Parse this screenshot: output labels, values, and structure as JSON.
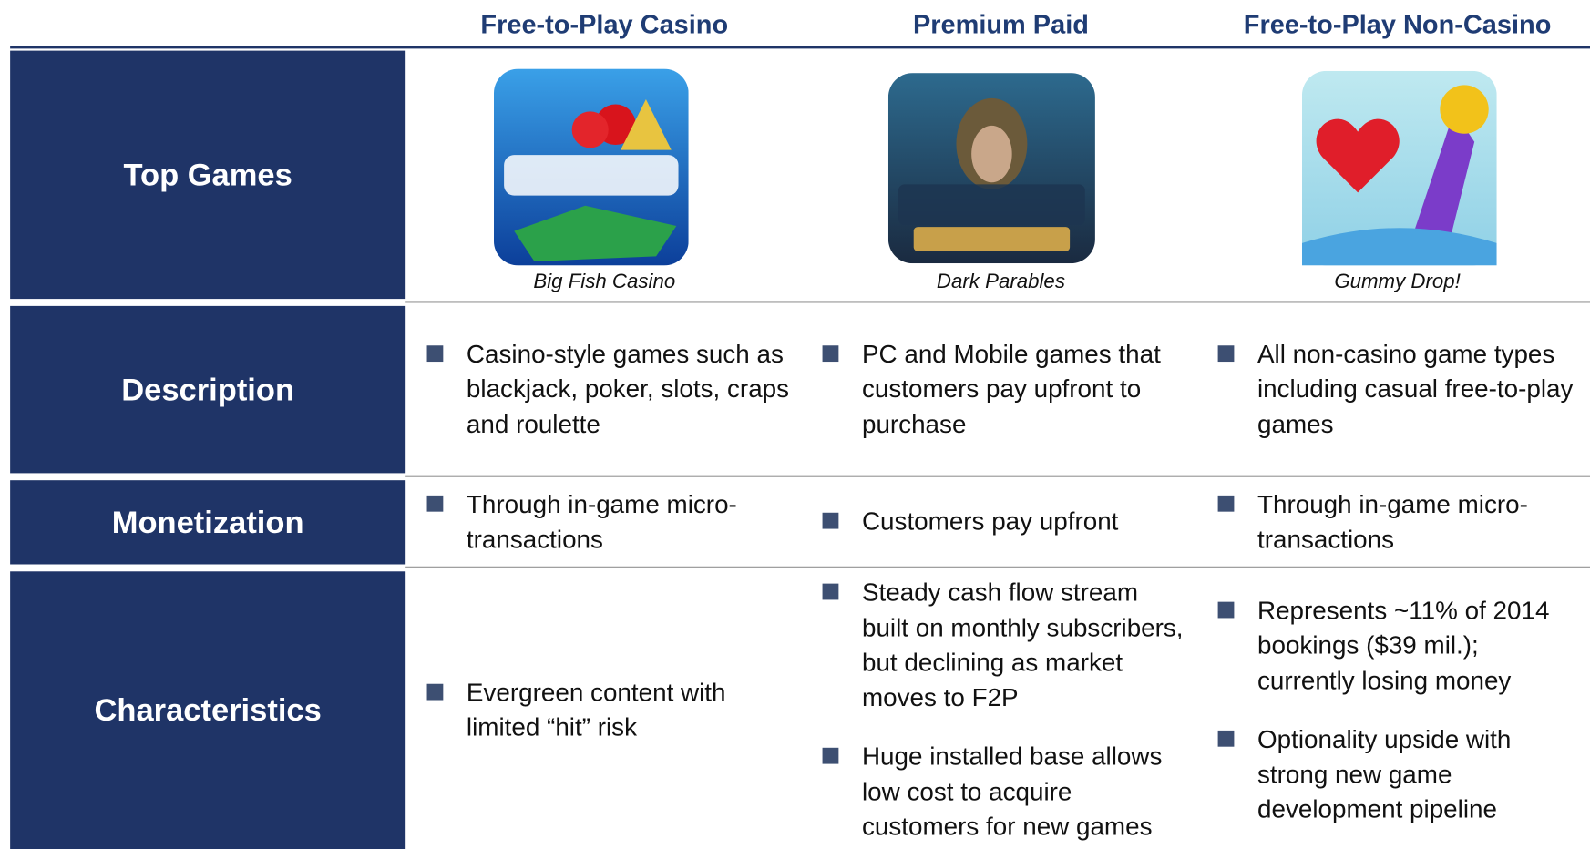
{
  "columns": [
    "Free-to-Play Casino",
    "Premium Paid",
    "Free-to-Play Non-Casino"
  ],
  "rows": [
    {
      "label": "Top Games",
      "captions": [
        "Big Fish Casino",
        "Dark Parables",
        "Gummy Drop!"
      ]
    },
    {
      "label": "Description",
      "cells": [
        [
          "Casino-style games such as blackjack, poker, slots, craps and roulette"
        ],
        [
          "PC and Mobile games that customers pay upfront to purchase"
        ],
        [
          "All non-casino game types including casual free-to-play games"
        ]
      ]
    },
    {
      "label": "Monetization",
      "cells": [
        [
          "Through in-game micro-transactions"
        ],
        [
          "Customers pay upfront"
        ],
        [
          "Through in-game micro-transactions"
        ]
      ]
    },
    {
      "label": "Characteristics",
      "cells": [
        [
          "Evergreen content with limited “hit” risk"
        ],
        [
          "Steady cash flow stream built on monthly subscribers, but declining as market moves to F2P",
          "Huge installed base allows low cost to acquire customers for new games"
        ],
        [
          "Represents ~11% of 2014 bookings ($39 mil.); currently losing money",
          "Optionality upside with strong new game development pipeline"
        ]
      ]
    }
  ]
}
